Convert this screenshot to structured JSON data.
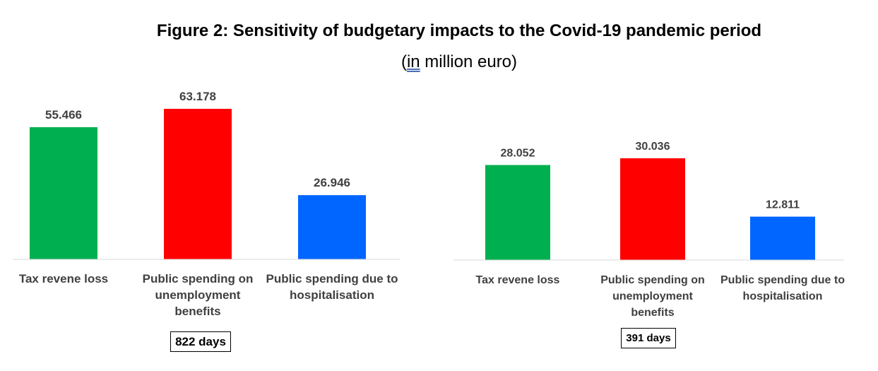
{
  "title": "Figure 2: Sensitivity of budgetary impacts to the Covid-19 pandemic period",
  "subtitle": {
    "open": "(",
    "underlined": "in",
    "rest": " million euro)"
  },
  "chart_data": [
    {
      "type": "bar",
      "categories": [
        "Tax revene loss",
        "Public spending on unemployment benefits",
        "Public spending due to hospitalisation"
      ],
      "category_lines": [
        [
          "Tax revene loss"
        ],
        [
          "Public spending on",
          "unemployment",
          "benefits"
        ],
        [
          "Public spending due to",
          "hospitalisation"
        ]
      ],
      "values": [
        55.466,
        63.178,
        26.946
      ],
      "value_labels": [
        "55.466",
        "63.178",
        "26.946"
      ],
      "colors": [
        "#00b050",
        "#ff0000",
        "#0066ff"
      ],
      "ylim": [
        0,
        63.178
      ],
      "grid": false,
      "period_label": "822 days"
    },
    {
      "type": "bar",
      "categories": [
        "Tax revene loss",
        "Public spending on unemployment benefits",
        "Public spending due to hospitalisation"
      ],
      "category_lines": [
        [
          "Tax revene loss"
        ],
        [
          "Public spending on",
          "unemployment",
          "benefits"
        ],
        [
          "Public spending due to",
          "hospitalisation"
        ]
      ],
      "values": [
        28.052,
        30.036,
        12.811
      ],
      "value_labels": [
        "28.052",
        "30.036",
        "12.811"
      ],
      "colors": [
        "#00b050",
        "#ff0000",
        "#0066ff"
      ],
      "ylim": [
        0,
        30.036
      ],
      "grid": false,
      "period_label": "391 days"
    }
  ]
}
